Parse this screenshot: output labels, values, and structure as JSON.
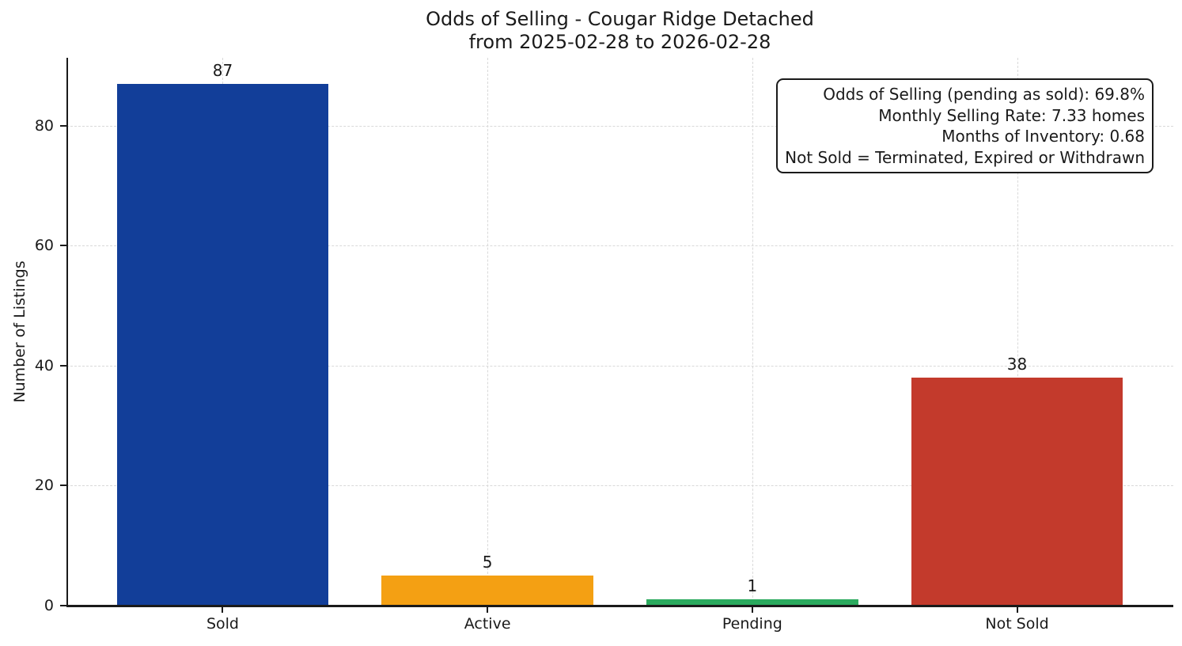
{
  "title": {
    "line1": "Odds of Selling - Cougar Ridge Detached",
    "line2": "from 2025-02-28 to 2026-02-28"
  },
  "chart_data": {
    "type": "bar",
    "title": "Odds of Selling - Cougar Ridge Detached\nfrom 2025-02-28 to 2026-02-28",
    "categories": [
      "Sold",
      "Active",
      "Pending",
      "Not Sold"
    ],
    "values": [
      87,
      5,
      1,
      38
    ],
    "bar_colors": [
      "#123E99",
      "#F4A013",
      "#2BAA5E",
      "#C33A2C"
    ],
    "xlabel": "",
    "ylabel": "Number of Listings",
    "ylim": [
      0,
      91.3
    ],
    "yticks": [
      0,
      20,
      40,
      60,
      80
    ],
    "grid": "dashed, both axes",
    "legend": "none",
    "annotation": {
      "position": "top-right",
      "lines": [
        "Odds of Selling (pending as sold): 69.8%",
        "Monthly Selling Rate: 7.33 homes",
        "Months of Inventory: 0.68",
        "Not Sold = Terminated, Expired or Withdrawn"
      ]
    }
  }
}
